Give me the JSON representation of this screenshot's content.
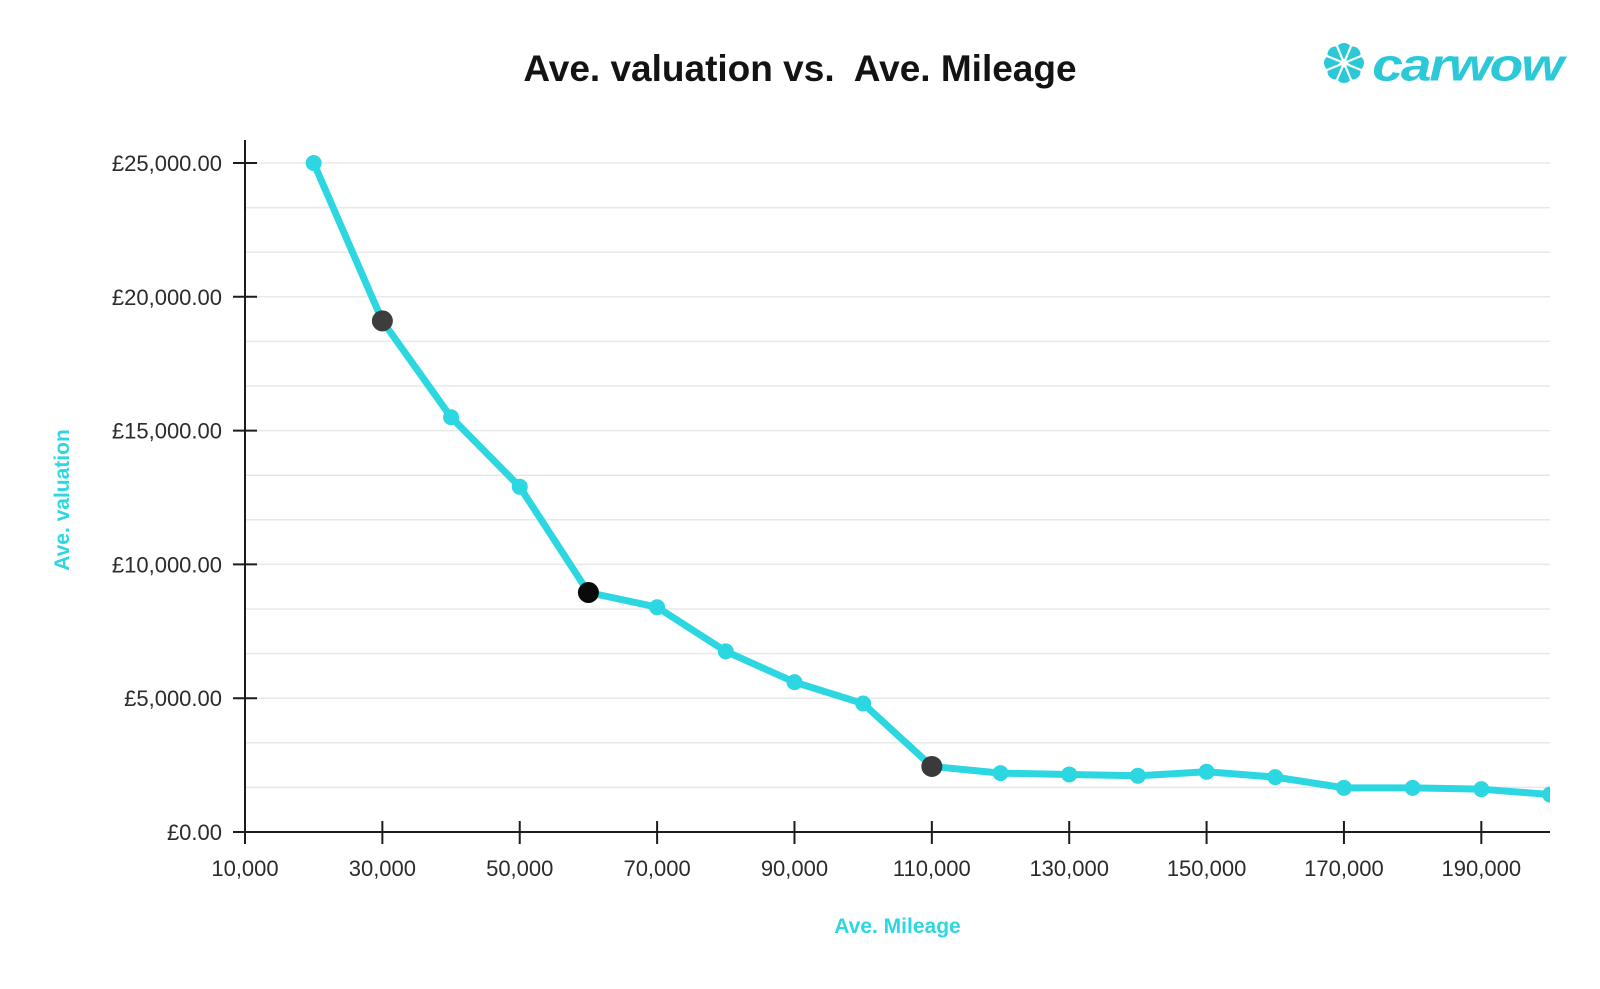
{
  "accent_color": "#2dd7e1",
  "logo": {
    "brand": "carwow",
    "icon": "flower-icon",
    "color": "#2bc9d8"
  },
  "chart_data": {
    "type": "line",
    "title": "Ave. valuation vs.  Ave. Mileage",
    "xlabel": "Ave. Mileage",
    "ylabel": "Ave. valuation",
    "x": [
      20000,
      30000,
      40000,
      50000,
      60000,
      70000,
      80000,
      90000,
      100000,
      110000,
      120000,
      130000,
      140000,
      150000,
      160000,
      170000,
      180000,
      190000,
      200000
    ],
    "values": [
      25000,
      19100,
      15500,
      12900,
      8950,
      8400,
      6750,
      5600,
      4800,
      2450,
      2200,
      2150,
      2100,
      2250,
      2050,
      1650,
      1650,
      1600,
      1400
    ],
    "highlighted_points": [
      {
        "index": 1,
        "x": 30000,
        "value": 19100,
        "color": "#3d3d3d"
      },
      {
        "index": 4,
        "x": 60000,
        "value": 8950,
        "color": "#0a0a0a"
      },
      {
        "index": 9,
        "x": 110000,
        "value": 2450,
        "color": "#3a3a3a"
      }
    ],
    "x_ticks": [
      10000,
      30000,
      50000,
      70000,
      90000,
      110000,
      130000,
      150000,
      170000,
      190000
    ],
    "x_tick_labels": [
      "10,000",
      "30,000",
      "50,000",
      "70,000",
      "90,000",
      "110,000",
      "130,000",
      "150,000",
      "170,000",
      "190,000"
    ],
    "y_ticks": [
      0,
      5000,
      10000,
      15000,
      20000,
      25000
    ],
    "y_tick_labels": [
      "£0.00",
      "£5,000.00",
      "£10,000.00",
      "£15,000.00",
      "£20,000.00",
      "£25,000.00"
    ],
    "xlim": [
      10000,
      200000
    ],
    "ylim": [
      0,
      25000
    ],
    "grid": {
      "horizontal": true,
      "vertical": false,
      "minor_step": 1666.67,
      "color": "#e8e8e8"
    },
    "axis_color": "#1c1c1c",
    "tick_label_color": "#2b2b2b",
    "line_color": "#2dd7e1",
    "marker_color": "#2dd7e1",
    "legend": "none"
  }
}
